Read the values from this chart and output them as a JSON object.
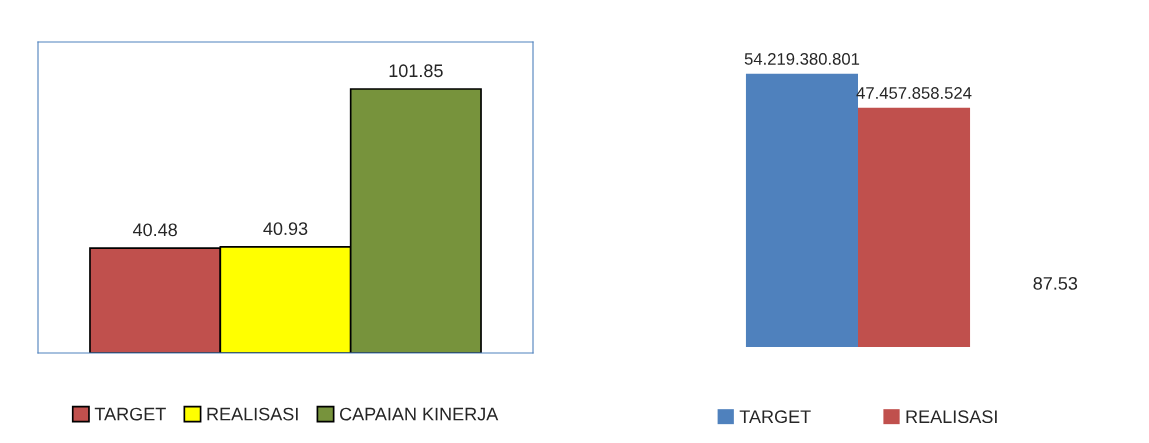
{
  "chart_data": [
    {
      "type": "bar",
      "categories": [
        null
      ],
      "series": [
        {
          "name": "TARGET",
          "color": "#c0504d",
          "values": [
            40.48
          ]
        },
        {
          "name": "REALISASI",
          "color": "#ffff00",
          "values": [
            40.93
          ]
        },
        {
          "name": "CAPAIAN KINERJA",
          "color": "#77933c",
          "values": [
            101.85
          ]
        }
      ],
      "ylim": [
        0,
        120
      ],
      "data_labels": true,
      "legend": "bottom"
    },
    {
      "type": "bar",
      "categories": [
        null
      ],
      "series": [
        {
          "name": "TARGET",
          "color": "#4f81bd",
          "values": [
            54219380801
          ],
          "value_labels": [
            "54.219.380.801"
          ]
        },
        {
          "name": "REALISASI",
          "color": "#c0504d",
          "values": [
            47457858524
          ],
          "value_labels": [
            "47.457.858.524"
          ]
        }
      ],
      "annotations": [
        "87.53"
      ],
      "legend": "bottom"
    }
  ]
}
